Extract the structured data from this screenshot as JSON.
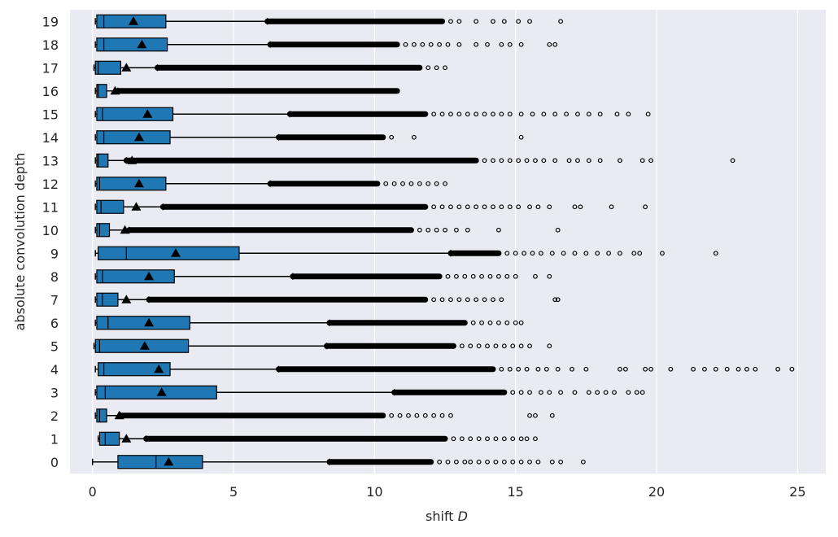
{
  "chart_data": {
    "type": "boxplot",
    "orientation": "horizontal",
    "xlabel": "shift",
    "xlabel_var": "D",
    "ylabel": "absolute convolution depth",
    "xlim": [
      -0.8,
      26
    ],
    "x_ticks": [
      0,
      5,
      10,
      15,
      20,
      25
    ],
    "grid": true,
    "colors": {
      "background": "#eaeaf2",
      "box_fill": "#1f77b4",
      "edge": "#000000",
      "grid": "#ffffff",
      "text": "#262626"
    },
    "categories": [
      "0",
      "1",
      "2",
      "3",
      "4",
      "5",
      "6",
      "7",
      "8",
      "9",
      "10",
      "11",
      "12",
      "13",
      "14",
      "15",
      "16",
      "17",
      "18",
      "19"
    ],
    "boxes": [
      {
        "depth": "0",
        "whislo": 0.0,
        "q1": 0.9,
        "med": 2.25,
        "mean": 2.7,
        "q3": 3.9,
        "whishi": 8.4,
        "dense_to": 12.0,
        "outliers": [
          12.3,
          12.6,
          12.9,
          13.2,
          13.4,
          13.7,
          14.0,
          14.3,
          14.6,
          14.9,
          15.2,
          15.5,
          15.8,
          16.3,
          16.6,
          17.4
        ]
      },
      {
        "depth": "1",
        "whislo": 0.2,
        "q1": 0.25,
        "med": 0.45,
        "mean": 1.2,
        "q3": 0.95,
        "whishi": 1.9,
        "dense_to": 12.5,
        "outliers": [
          12.8,
          13.1,
          13.4,
          13.7,
          14.0,
          14.3,
          14.6,
          14.9,
          15.2,
          15.4,
          15.7
        ]
      },
      {
        "depth": "2",
        "whislo": 0.1,
        "q1": 0.15,
        "med": 0.25,
        "mean": 0.95,
        "q3": 0.5,
        "whishi": 1.0,
        "dense_to": 10.3,
        "outliers": [
          10.6,
          10.9,
          11.2,
          11.5,
          11.8,
          12.1,
          12.4,
          12.7,
          15.5,
          15.7,
          16.3
        ]
      },
      {
        "depth": "3",
        "whislo": 0.1,
        "q1": 0.15,
        "med": 0.45,
        "mean": 2.45,
        "q3": 4.4,
        "whishi": 10.7,
        "dense_to": 14.6,
        "outliers": [
          14.9,
          15.2,
          15.5,
          15.9,
          16.2,
          16.6,
          17.1,
          17.6,
          17.9,
          18.2,
          18.5,
          19.0,
          19.3,
          19.5
        ]
      },
      {
        "depth": "4",
        "whislo": 0.1,
        "q1": 0.2,
        "med": 0.4,
        "mean": 2.35,
        "q3": 2.75,
        "whishi": 6.6,
        "dense_to": 14.2,
        "outliers": [
          14.5,
          14.8,
          15.1,
          15.4,
          15.8,
          16.1,
          16.5,
          17.0,
          17.5,
          18.7,
          18.9,
          19.6,
          19.8,
          20.5,
          21.3,
          21.7,
          22.1,
          22.5,
          22.9,
          23.2,
          23.5,
          24.3,
          24.8
        ]
      },
      {
        "depth": "5",
        "whislo": 0.05,
        "q1": 0.1,
        "med": 0.25,
        "mean": 1.85,
        "q3": 3.4,
        "whishi": 8.3,
        "dense_to": 12.8,
        "outliers": [
          13.1,
          13.4,
          13.7,
          14.0,
          14.3,
          14.6,
          14.9,
          15.2,
          15.5,
          16.2
        ]
      },
      {
        "depth": "6",
        "whislo": 0.1,
        "q1": 0.15,
        "med": 0.55,
        "mean": 2.0,
        "q3": 3.45,
        "whishi": 8.4,
        "dense_to": 13.2,
        "outliers": [
          13.5,
          13.8,
          14.1,
          14.4,
          14.7,
          15.0,
          15.2
        ]
      },
      {
        "depth": "7",
        "whislo": 0.1,
        "q1": 0.15,
        "med": 0.35,
        "mean": 1.2,
        "q3": 0.9,
        "whishi": 2.0,
        "dense_to": 11.8,
        "outliers": [
          12.1,
          12.4,
          12.7,
          13.0,
          13.3,
          13.6,
          13.9,
          14.2,
          14.5,
          16.4,
          16.5
        ]
      },
      {
        "depth": "8",
        "whislo": 0.1,
        "q1": 0.15,
        "med": 0.35,
        "mean": 2.0,
        "q3": 2.9,
        "whishi": 7.1,
        "dense_to": 12.3,
        "outliers": [
          12.6,
          12.9,
          13.2,
          13.5,
          13.8,
          14.1,
          14.4,
          14.7,
          15.0,
          15.7,
          16.2
        ]
      },
      {
        "depth": "9",
        "whislo": 0.1,
        "q1": 0.2,
        "med": 1.2,
        "mean": 2.95,
        "q3": 5.2,
        "whishi": 12.7,
        "dense_to": 14.4,
        "outliers": [
          14.7,
          15.0,
          15.3,
          15.6,
          15.9,
          16.3,
          16.7,
          17.1,
          17.5,
          17.9,
          18.3,
          18.7,
          19.2,
          19.4,
          20.2,
          22.1
        ]
      },
      {
        "depth": "10",
        "whislo": 0.1,
        "q1": 0.15,
        "med": 0.25,
        "mean": 1.15,
        "q3": 0.6,
        "whishi": 1.3,
        "dense_to": 11.3,
        "outliers": [
          11.6,
          11.9,
          12.2,
          12.5,
          12.9,
          13.3,
          14.4,
          16.5
        ]
      },
      {
        "depth": "11",
        "whislo": 0.1,
        "q1": 0.15,
        "med": 0.3,
        "mean": 1.55,
        "q3": 1.1,
        "whishi": 2.5,
        "dense_to": 11.8,
        "outliers": [
          12.1,
          12.4,
          12.7,
          13.0,
          13.3,
          13.6,
          13.9,
          14.2,
          14.5,
          14.8,
          15.1,
          15.5,
          15.8,
          16.2,
          17.1,
          17.3,
          18.4,
          19.6
        ]
      },
      {
        "depth": "12",
        "whislo": 0.1,
        "q1": 0.15,
        "med": 0.25,
        "mean": 1.65,
        "q3": 2.6,
        "whishi": 6.3,
        "dense_to": 10.1,
        "outliers": [
          10.4,
          10.7,
          11.0,
          11.3,
          11.6,
          11.9,
          12.2,
          12.5
        ]
      },
      {
        "depth": "13",
        "whislo": 0.1,
        "q1": 0.15,
        "med": 0.2,
        "mean": 1.4,
        "q3": 0.55,
        "whishi": 1.2,
        "dense_to": 13.6,
        "outliers": [
          13.9,
          14.2,
          14.5,
          14.8,
          15.1,
          15.4,
          15.7,
          16.0,
          16.4,
          16.9,
          17.2,
          17.6,
          18.0,
          18.7,
          19.5,
          19.8,
          22.7
        ]
      },
      {
        "depth": "14",
        "whislo": 0.1,
        "q1": 0.15,
        "med": 0.4,
        "mean": 1.65,
        "q3": 2.75,
        "whishi": 6.6,
        "dense_to": 10.3,
        "outliers": [
          10.6,
          11.4,
          15.2
        ]
      },
      {
        "depth": "15",
        "whislo": 0.1,
        "q1": 0.15,
        "med": 0.35,
        "mean": 1.95,
        "q3": 2.85,
        "whishi": 7.0,
        "dense_to": 11.8,
        "outliers": [
          12.1,
          12.4,
          12.7,
          13.0,
          13.3,
          13.6,
          13.9,
          14.2,
          14.5,
          14.8,
          15.2,
          15.6,
          16.0,
          16.4,
          16.8,
          17.2,
          17.6,
          18.0,
          18.6,
          19.0,
          19.7
        ]
      },
      {
        "depth": "16",
        "whislo": 0.1,
        "q1": 0.15,
        "med": 0.2,
        "mean": 0.8,
        "q3": 0.5,
        "whishi": 0.9,
        "dense_to": 10.8,
        "outliers": []
      },
      {
        "depth": "17",
        "whislo": 0.05,
        "q1": 0.1,
        "med": 0.2,
        "mean": 1.2,
        "q3": 1.0,
        "whishi": 2.3,
        "dense_to": 11.6,
        "outliers": [
          11.9,
          12.2,
          12.5
        ]
      },
      {
        "depth": "18",
        "whislo": 0.1,
        "q1": 0.15,
        "med": 0.4,
        "mean": 1.75,
        "q3": 2.65,
        "whishi": 6.3,
        "dense_to": 10.8,
        "outliers": [
          11.1,
          11.4,
          11.7,
          12.0,
          12.3,
          12.6,
          13.0,
          13.6,
          14.0,
          14.5,
          14.8,
          15.2,
          16.2,
          16.4
        ]
      },
      {
        "depth": "19",
        "whislo": 0.1,
        "q1": 0.15,
        "med": 0.4,
        "mean": 1.45,
        "q3": 2.6,
        "whishi": 6.2,
        "dense_to": 12.4,
        "outliers": [
          12.7,
          13.0,
          13.6,
          14.2,
          14.6,
          15.1,
          15.5,
          16.6
        ]
      }
    ]
  }
}
